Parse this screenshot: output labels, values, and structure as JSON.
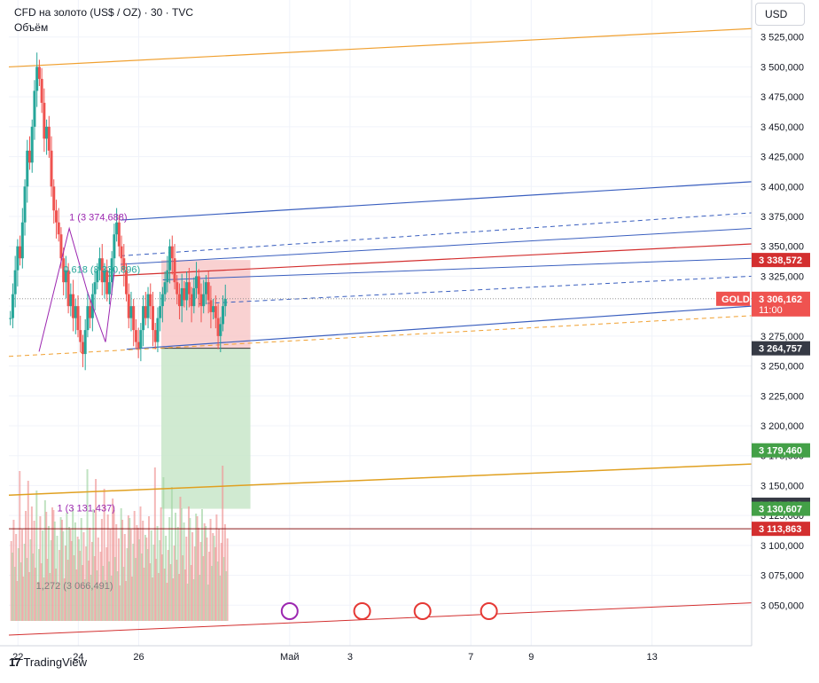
{
  "header": {
    "symbol_line": "CFD на золото (US$ / OZ) · 30 · TVC",
    "volume_label": "Объём"
  },
  "currency_button": "USD",
  "brand": {
    "logo_text": "17",
    "name": "TradingView"
  },
  "colors": {
    "up": "#26a69a",
    "down": "#ef5350",
    "orange": "#f0a030",
    "blue": "#3a5fbf",
    "red_line": "#d32f2f",
    "purple": "#9c27b0",
    "fib_green": "#26a69a",
    "profit_zone": "#c8e6c9",
    "loss_zone": "#f8c9c9"
  },
  "chart_data": {
    "type": "candlestick",
    "y_axis": {
      "range": [
        3025000,
        3550000
      ],
      "ticks": [
        "3 525,000",
        "3 500,000",
        "3 475,000",
        "3 450,000",
        "3 425,000",
        "3 400,000",
        "3 375,000",
        "3 350,000",
        "3 325,000",
        "3 300,000",
        "3 275,000",
        "3 250,000",
        "3 225,000",
        "3 200,000",
        "3 175,000",
        "3 150,000",
        "3 125,000",
        "3 100,000",
        "3 075,000",
        "3 050,000"
      ],
      "tick_values": [
        3525000,
        3500000,
        3475000,
        3450000,
        3425000,
        3400000,
        3375000,
        3350000,
        3325000,
        3300000,
        3275000,
        3250000,
        3225000,
        3200000,
        3175000,
        3150000,
        3125000,
        3100000,
        3075000,
        3050000
      ]
    },
    "x_axis": {
      "labels": [
        "22",
        "24",
        "26",
        "Май",
        "3",
        "7",
        "9",
        "13"
      ],
      "day_values": [
        0,
        2,
        4,
        9,
        11,
        15,
        17,
        21
      ],
      "range_days": [
        -0.3,
        24.3
      ]
    },
    "price_labels": [
      {
        "text": "3 338,572",
        "value": 3338572,
        "bg": "#d32f2f"
      },
      {
        "text": "3 306,162",
        "value": 3306162,
        "bg": "#ef5350",
        "sub": "11:00",
        "tag": "GOLD"
      },
      {
        "text": "3 264,757",
        "value": 3264757,
        "bg": "#363a45"
      },
      {
        "text": "3 179,460",
        "value": 3179460,
        "bg": "#43a047"
      },
      {
        "text": "3 133,988",
        "value": 3133988,
        "bg": "#363a45"
      },
      {
        "text": "3 130,607",
        "value": 3130607,
        "bg": "#43a047"
      },
      {
        "text": "3 113,863",
        "value": 3113863,
        "bg": "#d32f2f"
      }
    ],
    "annotations": [
      {
        "text": "1 (3 374,688)",
        "day": 1.7,
        "value": 3374688,
        "color": "#9c27b0"
      },
      {
        "text": "0,618 (3 330,896)",
        "day": 1.5,
        "value": 3330896,
        "color": "#26a69a"
      },
      {
        "text": "1 (3 131,437)",
        "day": 1.3,
        "value": 3131437,
        "color": "#9c27b0"
      },
      {
        "text": "1,272 (3 066,491)",
        "day": 0.6,
        "value": 3066491,
        "color": "#808080"
      }
    ],
    "candles_close": [
      3290,
      3310,
      3330,
      3350,
      3340,
      3370,
      3400,
      3430,
      3420,
      3450,
      3480,
      3500,
      3490,
      3470,
      3440,
      3450,
      3430,
      3400,
      3380,
      3370,
      3360,
      3340,
      3320,
      3330,
      3300,
      3310,
      3290,
      3300,
      3280,
      3270,
      3260,
      3280,
      3300,
      3290,
      3310,
      3320,
      3330,
      3340,
      3320,
      3330,
      3310,
      3320,
      3340,
      3360,
      3370,
      3350,
      3340,
      3330,
      3310,
      3290,
      3300,
      3280,
      3270,
      3265,
      3280,
      3300,
      3290,
      3310,
      3300,
      3280,
      3270,
      3290,
      3300,
      3310,
      3320,
      3330,
      3350,
      3340,
      3320,
      3310,
      3300,
      3315,
      3305,
      3320,
      3310,
      3300,
      3315,
      3325,
      3310,
      3300,
      3310,
      3320,
      3305,
      3295,
      3300,
      3290,
      3275,
      3285,
      3300,
      3306
    ],
    "trade_box": {
      "entry": 3264757,
      "stop": 3338572,
      "target": 3130607,
      "day_start": 4.75,
      "day_end": 7.7
    }
  }
}
